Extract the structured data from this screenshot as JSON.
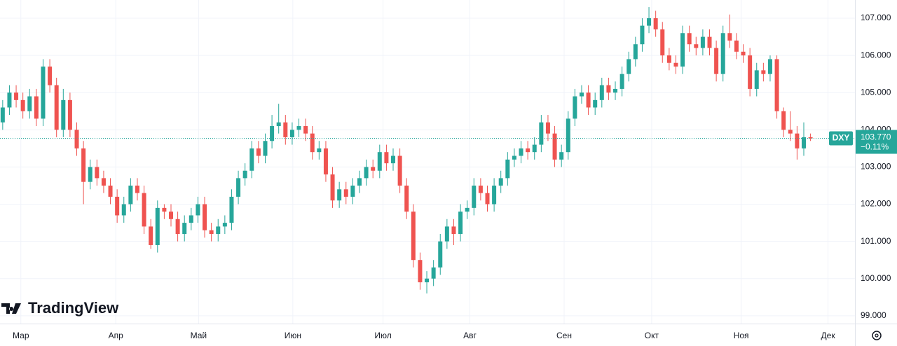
{
  "chart_data": {
    "type": "candlestick",
    "symbol": "DXY",
    "watermark": "TradingView",
    "last_price": {
      "value": 103.77,
      "label": "103.770"
    },
    "change_label": "−0.11%",
    "up_color": "#26a69a",
    "down_color": "#ef5350",
    "grid": true,
    "xlim": [
      -0.4,
      126.6
    ],
    "xticks": [
      {
        "value": 2.7,
        "label": "Мар"
      },
      {
        "value": 16.8,
        "label": "Апр"
      },
      {
        "value": 29.1,
        "label": "Май"
      },
      {
        "value": 43.1,
        "label": "Июн"
      },
      {
        "value": 56.5,
        "label": "Июл"
      },
      {
        "value": 69.4,
        "label": "Авг"
      },
      {
        "value": 83.4,
        "label": "Сен"
      },
      {
        "value": 96.4,
        "label": "Окт"
      },
      {
        "value": 109.7,
        "label": "Ноя"
      },
      {
        "value": 122.6,
        "label": "Дек"
      }
    ],
    "ylim": [
      98.79,
      107.49
    ],
    "yticks": [
      {
        "value": 99,
        "label": "99.000"
      },
      {
        "value": 100,
        "label": "100.000"
      },
      {
        "value": 101,
        "label": "101.000"
      },
      {
        "value": 102,
        "label": "102.000"
      },
      {
        "value": 103,
        "label": "103.000"
      },
      {
        "value": 104,
        "label": "104.000"
      },
      {
        "value": 105,
        "label": "105.000"
      },
      {
        "value": 106,
        "label": "106.000"
      },
      {
        "value": 107,
        "label": "107.000"
      }
    ],
    "open": [
      104.2,
      104.6,
      105.0,
      104.8,
      104.5,
      104.9,
      104.3,
      105.7,
      105.2,
      104.0,
      104.8,
      104.0,
      103.5,
      102.6,
      103.0,
      102.7,
      102.5,
      102.2,
      101.7,
      102.0,
      102.5,
      102.3,
      101.4,
      100.9,
      101.9,
      101.8,
      101.6,
      101.2,
      101.5,
      101.7,
      102.0,
      101.3,
      101.2,
      101.4,
      101.5,
      102.2,
      102.7,
      102.9,
      103.5,
      103.3,
      103.7,
      104.1,
      104.2,
      103.8,
      104.0,
      104.1,
      103.9,
      103.4,
      103.5,
      102.8,
      102.1,
      102.4,
      102.2,
      102.5,
      102.7,
      103.0,
      102.9,
      103.4,
      103.1,
      103.3,
      102.5,
      101.8,
      100.5,
      99.9,
      100.0,
      100.3,
      101.0,
      101.4,
      101.2,
      101.8,
      101.9,
      102.5,
      102.3,
      102.0,
      102.5,
      102.7,
      103.2,
      103.3,
      103.5,
      103.4,
      103.6,
      104.2,
      103.9,
      103.2,
      103.4,
      104.3,
      104.9,
      105.0,
      104.6,
      104.8,
      105.2,
      105.0,
      105.1,
      105.5,
      105.9,
      106.3,
      106.8,
      107.0,
      106.7,
      106.0,
      105.8,
      105.7,
      106.6,
      106.3,
      106.2,
      106.5,
      106.2,
      105.5,
      106.6,
      106.4,
      106.1,
      106.0,
      105.1,
      105.6,
      105.5,
      105.9,
      104.5,
      104.0,
      103.9,
      103.5,
      103.8
    ],
    "high": [
      104.8,
      105.2,
      105.2,
      105.0,
      105.1,
      105.1,
      105.9,
      105.9,
      105.4,
      105.1,
      105.0,
      104.2,
      103.7,
      103.2,
      103.2,
      102.9,
      102.7,
      102.4,
      102.2,
      102.7,
      102.7,
      102.5,
      101.6,
      102.1,
      102.0,
      102.0,
      101.8,
      101.7,
      101.9,
      102.2,
      102.2,
      101.5,
      101.6,
      101.7,
      102.4,
      102.9,
      103.1,
      103.7,
      103.7,
      103.9,
      104.4,
      104.7,
      104.4,
      104.2,
      104.3,
      104.3,
      104.1,
      103.7,
      103.7,
      103.0,
      102.6,
      102.6,
      102.7,
      102.9,
      103.2,
      103.2,
      103.6,
      103.6,
      103.5,
      103.5,
      102.7,
      102.0,
      100.7,
      100.2,
      100.5,
      101.2,
      101.6,
      101.6,
      102.0,
      102.1,
      102.7,
      102.7,
      102.5,
      102.7,
      102.9,
      103.4,
      103.5,
      103.7,
      103.7,
      103.8,
      104.4,
      104.4,
      104.1,
      103.6,
      104.5,
      105.1,
      105.2,
      105.2,
      105.0,
      105.4,
      105.4,
      105.3,
      105.7,
      106.1,
      106.5,
      107.0,
      107.3,
      107.2,
      106.9,
      106.2,
      106.0,
      106.8,
      106.8,
      106.5,
      106.7,
      106.7,
      106.4,
      106.8,
      107.1,
      106.6,
      106.3,
      106.2,
      105.8,
      105.8,
      106.0,
      106.0,
      104.6,
      104.5,
      104.1,
      104.2,
      103.9
    ],
    "low": [
      104.0,
      104.4,
      104.6,
      104.3,
      104.3,
      104.1,
      104.1,
      105.0,
      103.8,
      103.8,
      103.8,
      103.3,
      102.0,
      102.4,
      102.5,
      102.3,
      102.0,
      101.5,
      101.5,
      101.8,
      102.1,
      101.2,
      100.8,
      100.7,
      101.6,
      101.4,
      101.0,
      101.0,
      101.3,
      101.5,
      101.1,
      101.0,
      101.0,
      101.2,
      101.3,
      102.0,
      102.5,
      102.7,
      103.1,
      103.1,
      103.5,
      103.9,
      103.6,
      103.6,
      103.8,
      103.7,
      103.2,
      103.2,
      102.6,
      101.9,
      101.9,
      102.0,
      102.0,
      102.3,
      102.5,
      102.7,
      102.7,
      102.9,
      102.9,
      102.3,
      101.6,
      100.3,
      99.7,
      99.6,
      99.8,
      100.1,
      100.8,
      100.9,
      101.0,
      101.6,
      101.7,
      102.1,
      101.8,
      101.8,
      102.3,
      102.5,
      103.0,
      103.1,
      103.2,
      103.2,
      103.4,
      103.7,
      103.0,
      103.0,
      103.2,
      104.1,
      104.7,
      104.4,
      104.4,
      104.6,
      104.8,
      104.8,
      104.9,
      105.3,
      105.7,
      106.1,
      106.6,
      106.5,
      105.8,
      105.6,
      105.5,
      105.5,
      106.1,
      106.0,
      106.0,
      106.0,
      105.3,
      105.3,
      106.2,
      105.9,
      105.8,
      104.9,
      104.9,
      105.3,
      105.3,
      104.3,
      103.8,
      103.7,
      103.2,
      103.3,
      103.7
    ],
    "close": [
      104.6,
      105.0,
      104.8,
      104.5,
      104.9,
      104.3,
      105.7,
      105.2,
      104.0,
      104.8,
      104.0,
      103.5,
      102.6,
      103.0,
      102.7,
      102.5,
      102.2,
      101.7,
      102.0,
      102.5,
      102.3,
      101.4,
      100.9,
      101.9,
      101.8,
      101.6,
      101.2,
      101.5,
      101.7,
      102.0,
      101.3,
      101.2,
      101.4,
      101.5,
      102.2,
      102.7,
      102.9,
      103.5,
      103.3,
      103.7,
      104.1,
      104.2,
      103.8,
      104.0,
      104.1,
      103.9,
      103.4,
      103.5,
      102.8,
      102.1,
      102.4,
      102.2,
      102.5,
      102.7,
      103.0,
      102.9,
      103.4,
      103.1,
      103.3,
      102.5,
      101.8,
      100.5,
      99.9,
      100.0,
      100.3,
      101.0,
      101.4,
      101.2,
      101.8,
      101.9,
      102.5,
      102.3,
      102.0,
      102.5,
      102.7,
      103.2,
      103.3,
      103.5,
      103.4,
      103.6,
      104.2,
      103.9,
      103.2,
      103.4,
      104.3,
      104.9,
      105.0,
      104.6,
      104.8,
      105.2,
      105.0,
      105.1,
      105.5,
      105.9,
      106.3,
      106.8,
      107.0,
      106.7,
      106.0,
      105.8,
      105.7,
      106.6,
      106.3,
      106.2,
      106.5,
      106.2,
      105.5,
      106.6,
      106.4,
      106.1,
      106.0,
      105.1,
      105.6,
      105.5,
      105.9,
      104.5,
      104.0,
      103.9,
      103.5,
      103.8,
      103.77
    ]
  }
}
